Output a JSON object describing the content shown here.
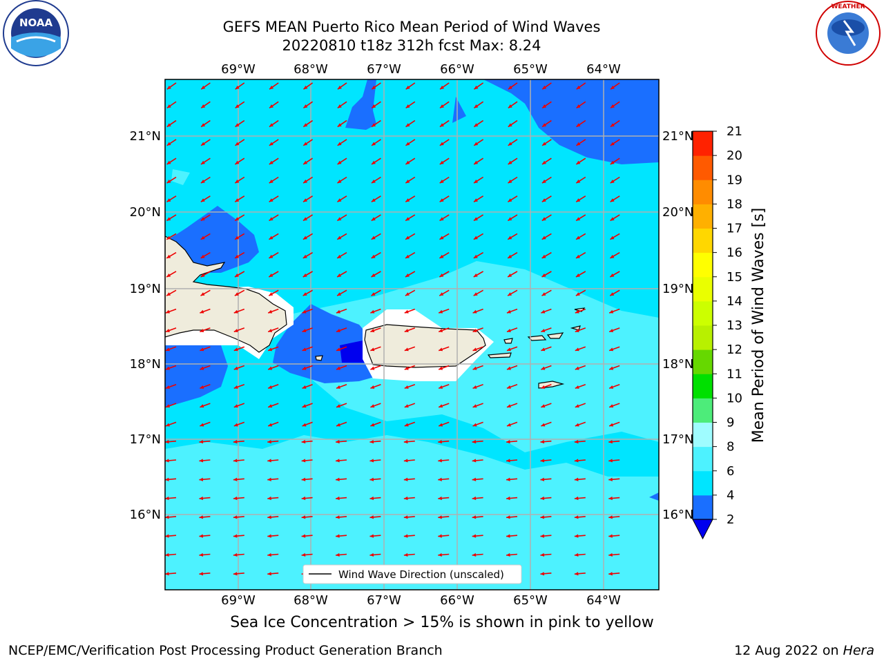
{
  "title_line1": "GEFS MEAN Puerto Rico Mean Period of Wind Waves",
  "title_line2": "20220810 t18z 312h fcst   Max: 8.24",
  "subcaption": "Sea Ice Concentration > 15% is shown in pink to yellow",
  "footer_left": "NCEP/EMC/Verification Post Processing Product Generation Branch",
  "footer_right_date": "12 Aug 2022 on ",
  "footer_right_host": "Hera",
  "legend_label": "Wind Wave Direction (unscaled)",
  "colorbar": {
    "label": "Mean Period of Wind Waves [s]",
    "ticks": [
      "2",
      "4",
      "6",
      "8",
      "9",
      "10",
      "11",
      "12",
      "13",
      "14",
      "15",
      "16",
      "17",
      "18",
      "19",
      "20",
      "21"
    ],
    "colors": [
      "#1a6fff",
      "#00e5ff",
      "#4df2ff",
      "#9ffcff",
      "#4dec7a",
      "#00e000",
      "#66d800",
      "#b8f000",
      "#ccff00",
      "#eaff00",
      "#ffff00",
      "#ffd700",
      "#ffb000",
      "#ff8c00",
      "#ff5a00",
      "#ff2200",
      "#ff0000"
    ],
    "under_color": "#0000ee"
  },
  "lon_labels": [
    "69°W",
    "68°W",
    "67°W",
    "66°W",
    "65°W",
    "64°W"
  ],
  "lat_labels": [
    "21°N",
    "20°N",
    "19°N",
    "18°N",
    "17°N",
    "16°N"
  ],
  "logos": {
    "noaa": "NOAA",
    "nws": "NATIONAL WEATHER SERVICE"
  },
  "map_colors": {
    "ocean_base": "#00e5ff",
    "light_band": "#4df2ff",
    "blue_zone": "#1a6fff",
    "deep_zone": "#0000ee",
    "land": "#efecdc",
    "arrow": "#ee0000",
    "grid": "#b0b0b0"
  }
}
